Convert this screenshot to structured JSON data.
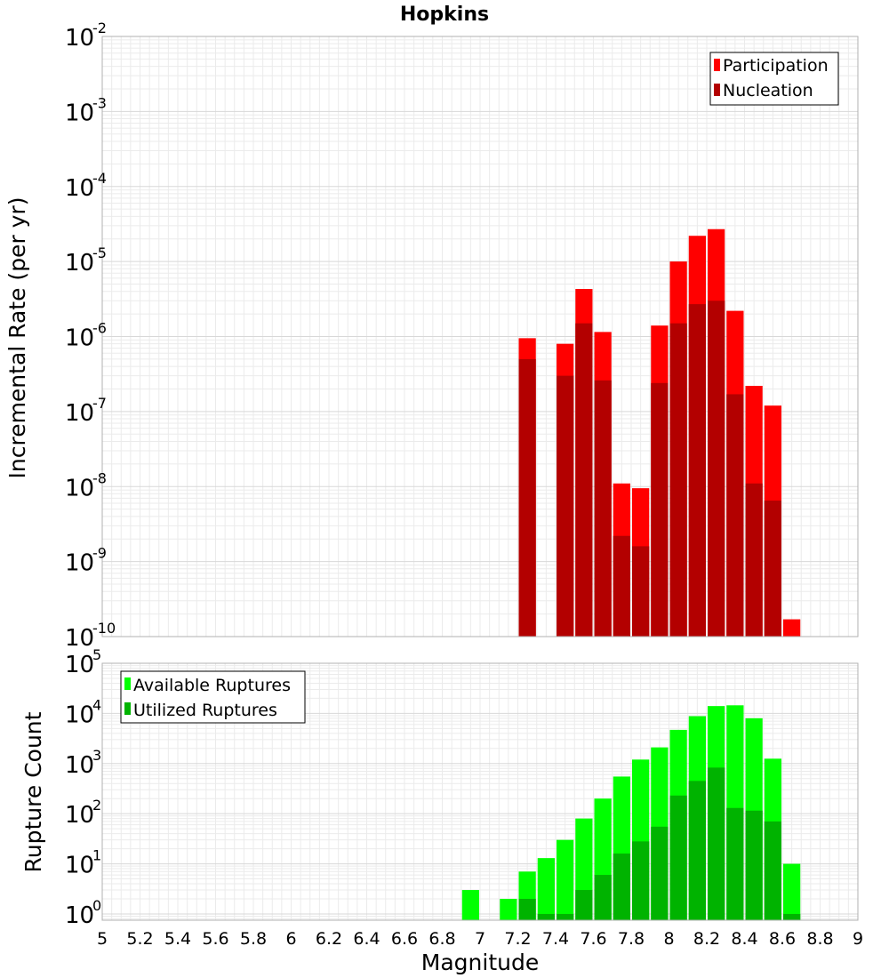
{
  "chart_data": {
    "type": "bar",
    "title": "Hopkins",
    "xlabel": "Magnitude",
    "xlim": [
      5,
      9
    ],
    "xticks": [
      "5",
      "5.2",
      "5.4",
      "5.6",
      "5.8",
      "6",
      "6.2",
      "6.4",
      "6.6",
      "6.8",
      "7",
      "7.2",
      "7.4",
      "7.6",
      "7.8",
      "8",
      "8.2",
      "8.4",
      "8.6",
      "8.8",
      "9"
    ],
    "bin_width": 0.1,
    "panels": [
      {
        "ylabel": "Incremental Rate (per yr)",
        "yscale": "log",
        "ylim": [
          1e-10,
          0.01
        ],
        "ytick_exponents": [
          "-2",
          "-3",
          "-4",
          "-5",
          "-6",
          "-7",
          "-8",
          "-9",
          "-10"
        ],
        "legend": {
          "placement": "top-right",
          "entries": [
            "Participation",
            "Nucleation"
          ]
        },
        "grid": true,
        "series": [
          {
            "name": "Participation",
            "color": "#ff0000",
            "x": [
              7.25,
              7.45,
              7.55,
              7.65,
              7.75,
              7.85,
              7.95,
              8.05,
              8.15,
              8.25,
              8.35,
              8.45,
              8.55,
              8.65
            ],
            "values": [
              9.5e-07,
              8e-07,
              4.3e-06,
              1.15e-06,
              1.1e-08,
              9.5e-09,
              1.4e-06,
              1e-05,
              2.2e-05,
              2.7e-05,
              2.2e-06,
              2.2e-07,
              1.2e-07,
              1.7e-10
            ]
          },
          {
            "name": "Nucleation",
            "color": "#b30000",
            "x": [
              7.25,
              7.45,
              7.55,
              7.65,
              7.75,
              7.85,
              7.95,
              8.05,
              8.15,
              8.25,
              8.35,
              8.45,
              8.55
            ],
            "values": [
              5e-07,
              3e-07,
              1.5e-06,
              2.6e-07,
              2.2e-09,
              1.6e-09,
              2.4e-07,
              1.5e-06,
              2.7e-06,
              3e-06,
              1.7e-07,
              1.1e-08,
              6.5e-09
            ]
          }
        ]
      },
      {
        "ylabel": "Rupture Count",
        "yscale": "log",
        "ylim": [
          0.75,
          100000.0
        ],
        "ytick_exponents": [
          "5",
          "4",
          "3",
          "2",
          "1",
          "0"
        ],
        "legend": {
          "placement": "top-left",
          "entries": [
            "Available Ruptures",
            "Utilized Ruptures"
          ]
        },
        "grid": true,
        "series": [
          {
            "name": "Available Ruptures",
            "color": "#00ff00",
            "x": [
              6.95,
              7.15,
              7.25,
              7.35,
              7.45,
              7.55,
              7.65,
              7.75,
              7.85,
              7.95,
              8.05,
              8.15,
              8.25,
              8.35,
              8.45,
              8.55,
              8.65
            ],
            "values": [
              3,
              2,
              7,
              13,
              30,
              80,
              200,
              550,
              1200,
              2100,
              4700,
              8800,
              14000,
              14500,
              8000,
              1250,
              10
            ]
          },
          {
            "name": "Utilized Ruptures",
            "color": "#00b300",
            "x": [
              7.25,
              7.35,
              7.45,
              7.55,
              7.65,
              7.75,
              7.85,
              7.95,
              8.05,
              8.15,
              8.25,
              8.35,
              8.45,
              8.55,
              8.65
            ],
            "values": [
              2,
              1,
              1,
              3,
              6,
              16,
              28,
              55,
              230,
              450,
              830,
              130,
              115,
              70,
              1
            ]
          }
        ]
      }
    ]
  }
}
